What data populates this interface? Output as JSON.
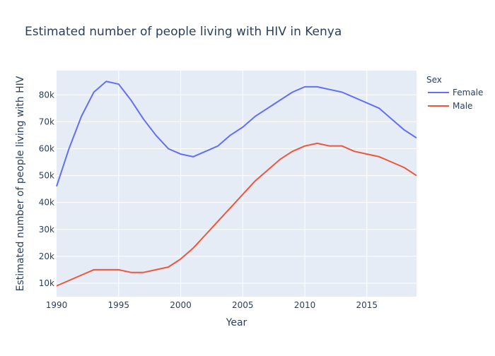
{
  "chart_data": {
    "type": "line",
    "title": "Estimated number of people living with HIV in Kenya",
    "xlabel": "Year",
    "ylabel": "Estimated number of people living with HIV",
    "xlim": [
      1990,
      2019
    ],
    "ylim": [
      5000,
      89000
    ],
    "x_ticks": [
      1990,
      1995,
      2000,
      2005,
      2010,
      2015
    ],
    "y_ticks": [
      10000,
      20000,
      30000,
      40000,
      50000,
      60000,
      70000,
      80000
    ],
    "y_tick_labels": [
      "10k",
      "20k",
      "30k",
      "40k",
      "50k",
      "60k",
      "70k",
      "80k"
    ],
    "grid": true,
    "legend": {
      "title": "Sex",
      "placement": "right"
    },
    "x": [
      1990,
      1991,
      1992,
      1993,
      1994,
      1995,
      1996,
      1997,
      1998,
      1999,
      2000,
      2001,
      2002,
      2003,
      2004,
      2005,
      2006,
      2007,
      2008,
      2009,
      2010,
      2011,
      2012,
      2013,
      2014,
      2015,
      2016,
      2017,
      2018,
      2019
    ],
    "series": [
      {
        "name": "Female",
        "color": "#636efa",
        "values": [
          46000,
          60000,
          72000,
          81000,
          85000,
          84000,
          78000,
          71000,
          65000,
          60000,
          58000,
          57000,
          59000,
          61000,
          65000,
          68000,
          72000,
          75000,
          78000,
          81000,
          83000,
          83000,
          82000,
          81000,
          79000,
          77000,
          75000,
          71000,
          67000,
          64000
        ]
      },
      {
        "name": "Male",
        "color": "#ef553b",
        "values": [
          9000,
          11000,
          13000,
          15000,
          15000,
          15000,
          14000,
          14000,
          15000,
          16000,
          19000,
          23000,
          28000,
          33000,
          38000,
          43000,
          48000,
          52000,
          56000,
          59000,
          61000,
          62000,
          61000,
          61000,
          59000,
          58000,
          57000,
          55000,
          53000,
          50000
        ]
      }
    ]
  }
}
